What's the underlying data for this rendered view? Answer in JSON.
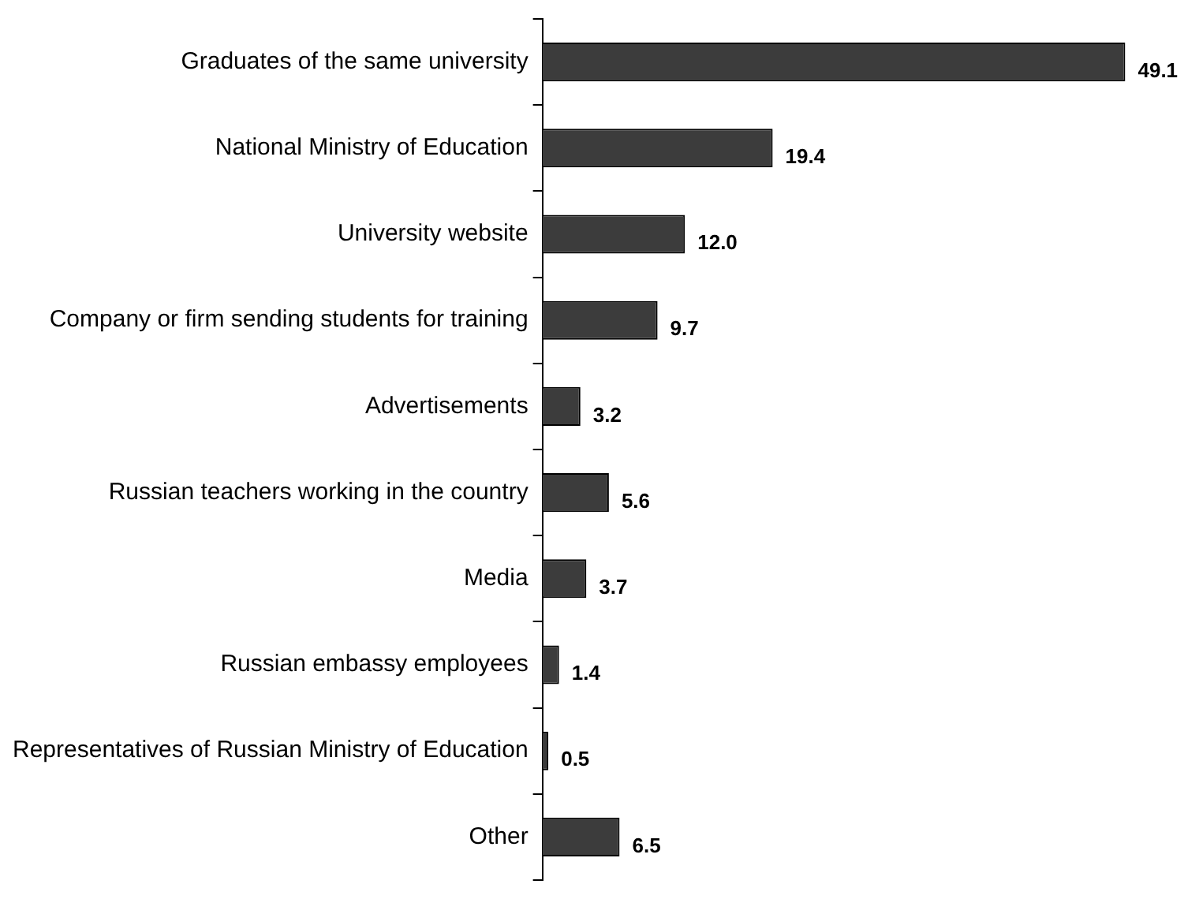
{
  "chart_data": {
    "type": "bar",
    "orientation": "horizontal",
    "categories": [
      "Graduates of the same university",
      "National Ministry of Education",
      "University website",
      "Company or firm sending students for training",
      "Advertisements",
      "Russian teachers working in the country",
      "Media",
      "Russian embassy employees",
      "Representatives of Russian Ministry of Education",
      "Other"
    ],
    "values": [
      49.1,
      19.4,
      12.0,
      9.7,
      3.2,
      5.6,
      3.7,
      1.4,
      0.5,
      6.5
    ],
    "value_labels": [
      "49.1",
      "19.4",
      "12.0",
      "9.7",
      "3.2",
      "5.6",
      "3.7",
      "1.4",
      "0.5",
      "6.5"
    ],
    "color": "#3c3c3c",
    "legend": false
  }
}
